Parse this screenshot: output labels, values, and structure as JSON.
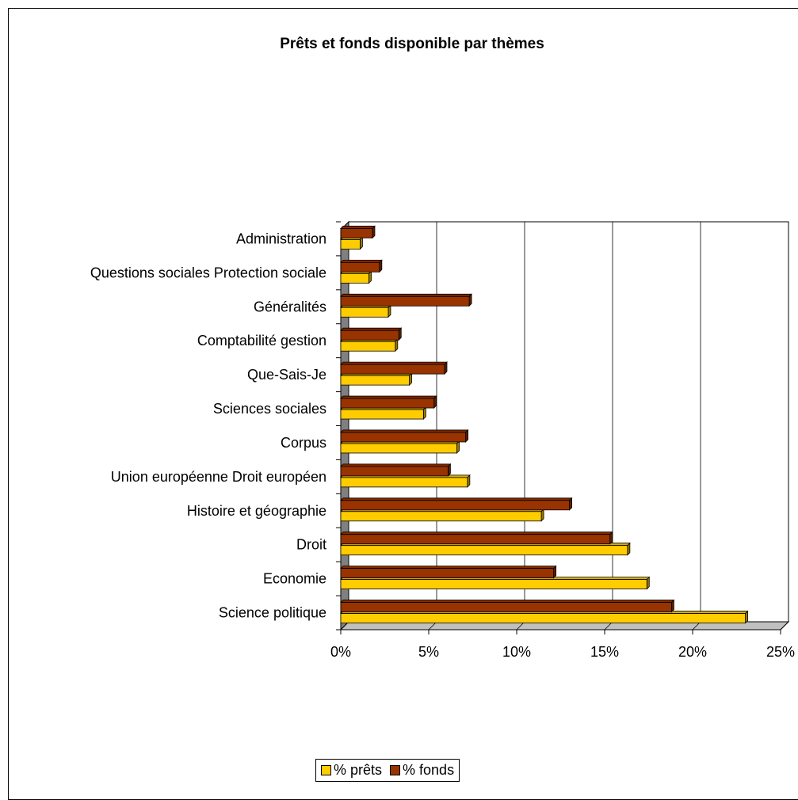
{
  "chart_data": {
    "type": "bar",
    "orientation": "horizontal",
    "title": "Prêts et fonds disponible par thèmes",
    "categories": [
      "Science politique",
      "Economie",
      "Droit",
      "Histoire et géographie",
      "Union européenne Droit européen",
      "Corpus",
      "Sciences sociales",
      "Que-Sais-Je",
      "Comptabilité gestion",
      "Généralités",
      "Questions sociales Protection sociale",
      "Administration"
    ],
    "series": [
      {
        "name": "% prêts",
        "color": "#FFCC00",
        "values": [
          23.0,
          17.4,
          16.3,
          11.4,
          7.2,
          6.6,
          4.7,
          3.9,
          3.1,
          2.7,
          1.6,
          1.1
        ]
      },
      {
        "name": "% fonds",
        "color": "#993300",
        "values": [
          18.8,
          12.1,
          15.3,
          13.0,
          6.1,
          7.1,
          5.3,
          5.9,
          3.3,
          7.3,
          2.2,
          1.8
        ]
      }
    ],
    "xlim": [
      0,
      25
    ],
    "xticks": [
      "0%",
      "5%",
      "10%",
      "15%",
      "20%",
      "25%"
    ],
    "grid": true,
    "legend_position": "bottom"
  }
}
